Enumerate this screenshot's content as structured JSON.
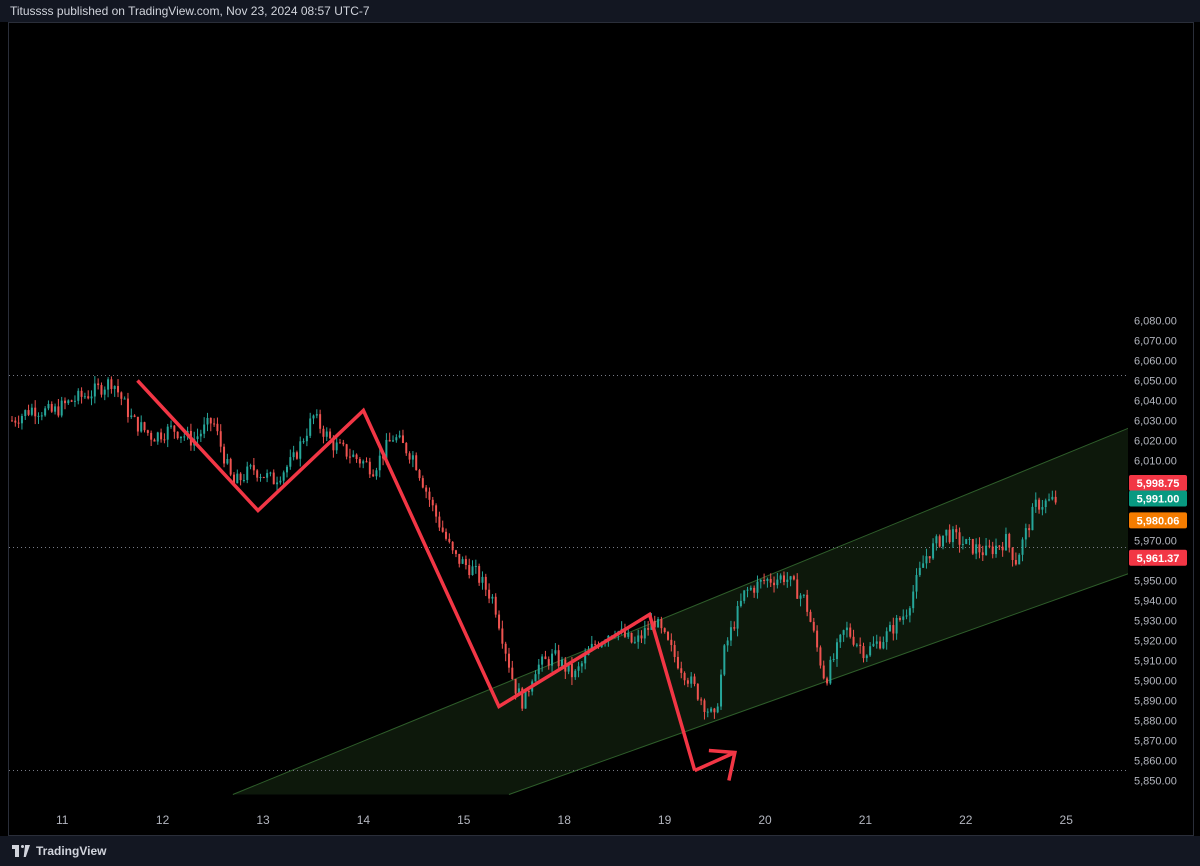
{
  "header": {
    "caption": "Titussss published on TradingView.com, Nov 23, 2024 08:57 UTC-7"
  },
  "footer": {
    "brand": "TradingView"
  },
  "colors": {
    "background": "#000000",
    "up": "#26a69a",
    "down": "#ef5350",
    "pattern": "#f23645",
    "channel": "#1e3a1e",
    "label_red": "#f23645",
    "label_green": "#089981",
    "label_orange": "#f57c00"
  },
  "chart_data": {
    "type": "line",
    "symbol_note": "price chart with manually drawn zigzag and ascending channel",
    "ylim": [
      5845,
      6085
    ],
    "y_ticks": [
      "6,080.00",
      "6,070.00",
      "6,060.00",
      "6,050.00",
      "6,040.00",
      "6,030.00",
      "6,020.00",
      "6,010.00",
      "5,970.00",
      "5,960.00",
      "5,950.00",
      "5,940.00",
      "5,930.00",
      "5,920.00",
      "5,910.00",
      "5,900.00",
      "5,890.00",
      "5,880.00",
      "5,870.00",
      "5,860.00",
      "5,850.00"
    ],
    "x_ticks": [
      {
        "label": "11",
        "x": 0.5
      },
      {
        "label": "12",
        "x": 1.5
      },
      {
        "label": "13",
        "x": 2.5
      },
      {
        "label": "14",
        "x": 3.5
      },
      {
        "label": "15",
        "x": 4.5
      },
      {
        "label": "18",
        "x": 5.5
      },
      {
        "label": "19",
        "x": 6.5
      },
      {
        "label": "20",
        "x": 7.5
      },
      {
        "label": "21",
        "x": 8.5
      },
      {
        "label": "22",
        "x": 9.5
      },
      {
        "label": "25",
        "x": 10.5
      }
    ],
    "price_labels": [
      {
        "text": "5,998.75",
        "value": 5998.75,
        "color": "#f23645"
      },
      {
        "text": "5,991.00",
        "value": 5991.0,
        "color": "#089981"
      },
      {
        "text": "5,980.06",
        "value": 5980.06,
        "color": "#f57c00"
      },
      {
        "text": "5,961.37",
        "value": 5961.37,
        "color": "#f23645"
      }
    ],
    "horizontal_levels": [
      6052.5,
      5966.5,
      5855
    ],
    "price_path": [
      [
        0.0,
        6030
      ],
      [
        0.2,
        6036
      ],
      [
        0.4,
        6034
      ],
      [
        0.6,
        6040
      ],
      [
        0.8,
        6044
      ],
      [
        1.0,
        6050
      ],
      [
        1.2,
        6030
      ],
      [
        1.4,
        6022
      ],
      [
        1.6,
        6026
      ],
      [
        1.8,
        6020
      ],
      [
        2.0,
        6030
      ],
      [
        2.2,
        5998
      ],
      [
        2.4,
        6006
      ],
      [
        2.6,
        6000
      ],
      [
        2.8,
        6010
      ],
      [
        3.0,
        6032
      ],
      [
        3.2,
        6018
      ],
      [
        3.4,
        6012
      ],
      [
        3.6,
        6006
      ],
      [
        3.8,
        6022
      ],
      [
        4.0,
        6012
      ],
      [
        4.2,
        5985
      ],
      [
        4.4,
        5962
      ],
      [
        4.6,
        5955
      ],
      [
        4.8,
        5940
      ],
      [
        5.0,
        5898
      ],
      [
        5.1,
        5888
      ],
      [
        5.2,
        5906
      ],
      [
        5.4,
        5912
      ],
      [
        5.6,
        5902
      ],
      [
        5.8,
        5918
      ],
      [
        6.0,
        5926
      ],
      [
        6.2,
        5918
      ],
      [
        6.4,
        5930
      ],
      [
        6.6,
        5912
      ],
      [
        6.8,
        5896
      ],
      [
        7.0,
        5880
      ],
      [
        7.1,
        5916
      ],
      [
        7.3,
        5944
      ],
      [
        7.5,
        5950
      ],
      [
        7.7,
        5952
      ],
      [
        7.9,
        5940
      ],
      [
        8.1,
        5900
      ],
      [
        8.3,
        5926
      ],
      [
        8.5,
        5914
      ],
      [
        8.7,
        5922
      ],
      [
        8.9,
        5934
      ],
      [
        9.1,
        5962
      ],
      [
        9.3,
        5974
      ],
      [
        9.5,
        5968
      ],
      [
        9.7,
        5964
      ],
      [
        9.9,
        5970
      ],
      [
        10.0,
        5960
      ],
      [
        10.2,
        5988
      ],
      [
        10.4,
        5990
      ]
    ],
    "zigzag": [
      [
        1.25,
        6050
      ],
      [
        2.45,
        5985
      ],
      [
        3.5,
        6035
      ],
      [
        4.85,
        5887
      ],
      [
        6.35,
        5933
      ],
      [
        6.8,
        5855
      ]
    ],
    "arrow_tip": [
      7.2,
      5864
    ],
    "channel": {
      "lower_start": [
        4.95,
        5843
      ],
      "lower_end": [
        11.6,
        5962
      ],
      "upper_start": [
        2.2,
        5843
      ],
      "upper_end": [
        11.6,
        6036
      ]
    }
  }
}
